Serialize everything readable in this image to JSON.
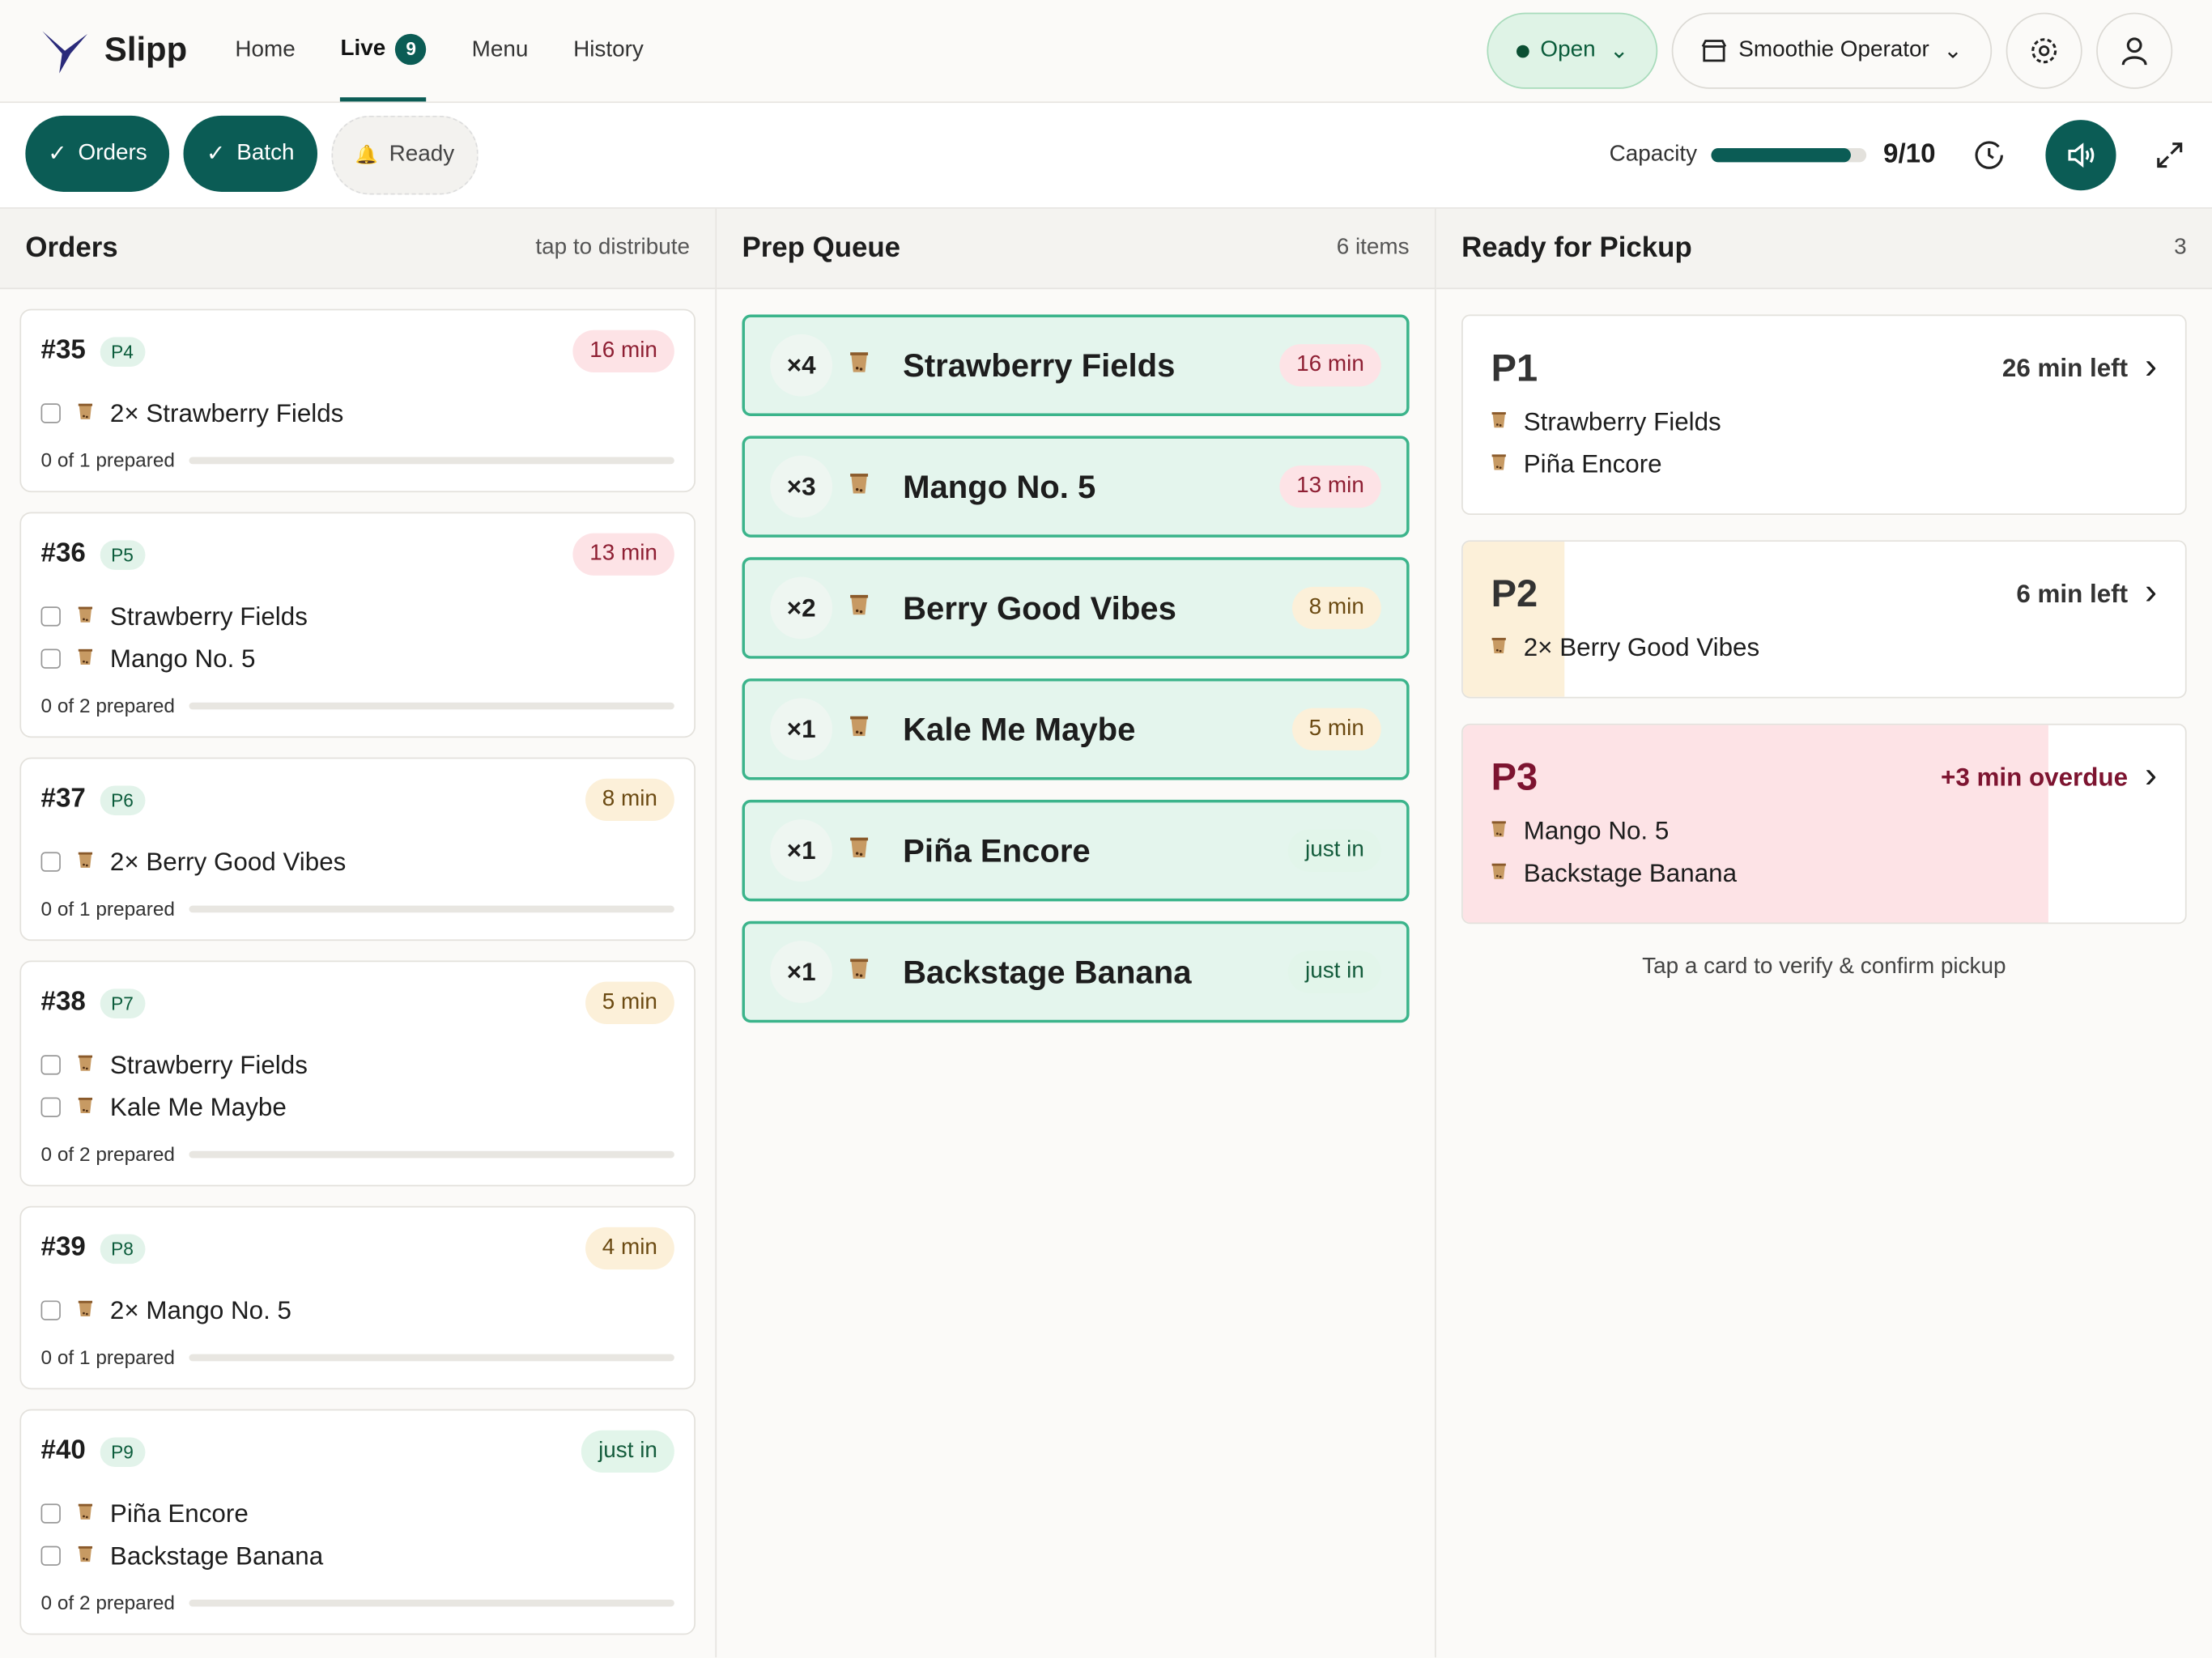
{
  "nav": {
    "brand": "Slipp",
    "links": [
      "Home",
      "Live",
      "Menu",
      "History"
    ],
    "live_count": "9",
    "status": "Open",
    "store": "Smoothie Operator"
  },
  "toolbar": {
    "filters": [
      "Orders",
      "Batch",
      "Ready"
    ],
    "capacity_label": "Capacity",
    "capacity": "9/10"
  },
  "orders": {
    "title": "Orders",
    "hint": "tap to distribute",
    "items": [
      {
        "id": "#35",
        "pickup": "P4",
        "time": "16 min",
        "color": "#fde3e6",
        "text_color": "#8e1f33",
        "lines": [
          "2× Strawberry Fields"
        ],
        "progress": "0 of 1 prepared"
      },
      {
        "id": "#36",
        "pickup": "P5",
        "time": "13 min",
        "color": "#fde3e6",
        "text_color": "#8e1f33",
        "lines": [
          "Strawberry Fields",
          "Mango No. 5"
        ],
        "progress": "0 of 2 prepared"
      },
      {
        "id": "#37",
        "pickup": "P6",
        "time": "8 min",
        "color": "#fcf0d9",
        "text_color": "#6b4a12",
        "lines": [
          "2× Berry Good Vibes"
        ],
        "progress": "0 of 1 prepared"
      },
      {
        "id": "#38",
        "pickup": "P7",
        "time": "5 min",
        "color": "#fcf0d9",
        "text_color": "#6b4a12",
        "lines": [
          "Strawberry Fields",
          "Kale Me Maybe"
        ],
        "progress": "0 of 2 prepared"
      },
      {
        "id": "#39",
        "pickup": "P8",
        "time": "4 min",
        "color": "#fcf0d9",
        "text_color": "#6b4a12",
        "lines": [
          "2× Mango No. 5"
        ],
        "progress": "0 of 1 prepared"
      },
      {
        "id": "#40",
        "pickup": "P9",
        "time": "just in",
        "color": "#e2f5ea",
        "text_color": "#145c3c",
        "lines": [
          "Piña Encore",
          "Backstage Banana"
        ],
        "progress": "0 of 2 prepared"
      }
    ]
  },
  "prep": {
    "title": "Prep Queue",
    "count": "6 items",
    "items": [
      {
        "qty": "×4",
        "name": "Strawberry Fields",
        "time": "16 min",
        "color": "#fde3e6",
        "text_color": "#8e1f33"
      },
      {
        "qty": "×3",
        "name": "Mango No. 5",
        "time": "13 min",
        "color": "#fde3e6",
        "text_color": "#8e1f33"
      },
      {
        "qty": "×2",
        "name": "Berry Good Vibes",
        "time": "8 min",
        "color": "#fcf0d9",
        "text_color": "#6b4a12"
      },
      {
        "qty": "×1",
        "name": "Kale Me Maybe",
        "time": "5 min",
        "color": "#fcf0d9",
        "text_color": "#6b4a12"
      },
      {
        "qty": "×1",
        "name": "Piña Encore",
        "time": "just in",
        "color": "#e2f5ea",
        "text_color": "#145c3c"
      },
      {
        "qty": "×1",
        "name": "Backstage Banana",
        "time": "just in",
        "color": "#e2f5ea",
        "text_color": "#145c3c"
      }
    ]
  },
  "ready": {
    "title": "Ready for Pickup",
    "count": "3",
    "items": [
      {
        "code": "P1",
        "time": "26 min left",
        "color": "#e3f5ea",
        "text_color": "#333333",
        "lines": [
          "Strawberry Fields",
          "Piña Encore"
        ]
      },
      {
        "code": "P2",
        "time": "6 min left",
        "color": "#fcf0d9",
        "text_color": "#333333",
        "lines": [
          "2× Berry Good Vibes"
        ]
      },
      {
        "code": "P3",
        "time": "+3 min overdue",
        "color": "#fde3e6",
        "text_color": "#7d1430",
        "lines": [
          "Mango No. 5",
          "Backstage Banana"
        ]
      }
    ],
    "footer": "Tap a card to verify & confirm pickup"
  }
}
